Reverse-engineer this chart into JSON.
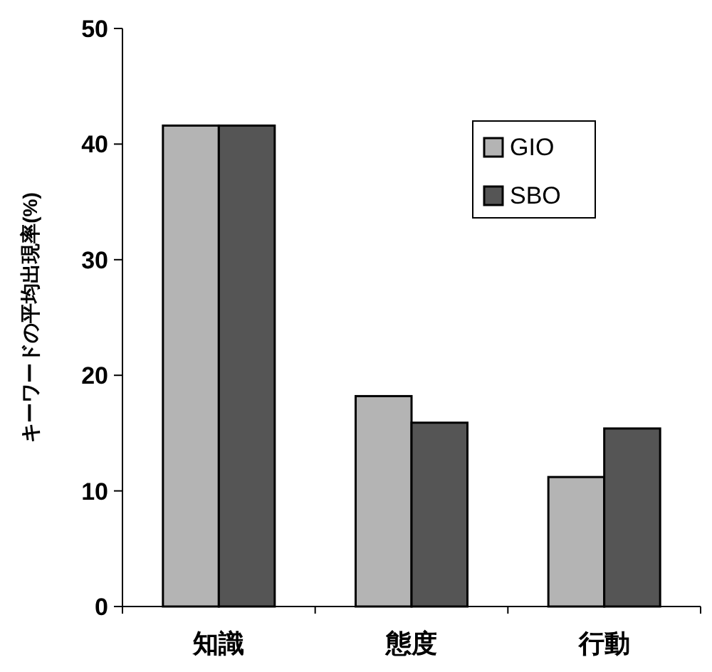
{
  "chart_data": {
    "type": "bar",
    "ylabel": "キーワードの平均出現率(%)",
    "categories": [
      "知識",
      "態度",
      "行動"
    ],
    "series": [
      {
        "name": "GIO",
        "color": "#b4b4b4",
        "values": [
          41.6,
          18.2,
          11.2
        ]
      },
      {
        "name": "SBO",
        "color": "#555555",
        "values": [
          41.6,
          15.9,
          15.4
        ]
      }
    ],
    "ylim": [
      0,
      50
    ],
    "yticks": [
      0,
      10,
      20,
      30,
      40,
      50
    ],
    "grid": false,
    "legend": "top right"
  }
}
